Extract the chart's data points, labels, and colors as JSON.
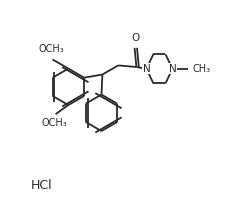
{
  "background_color": "#ffffff",
  "line_color": "#2a2a2a",
  "line_width": 1.3,
  "font_size": 7.5,
  "hcl_text": "HCl",
  "methoxy_top": "OCH₃",
  "methoxy_bot": "OCH₃",
  "nitrogen": "N",
  "oxygen": "O",
  "methyl": "CH₃"
}
